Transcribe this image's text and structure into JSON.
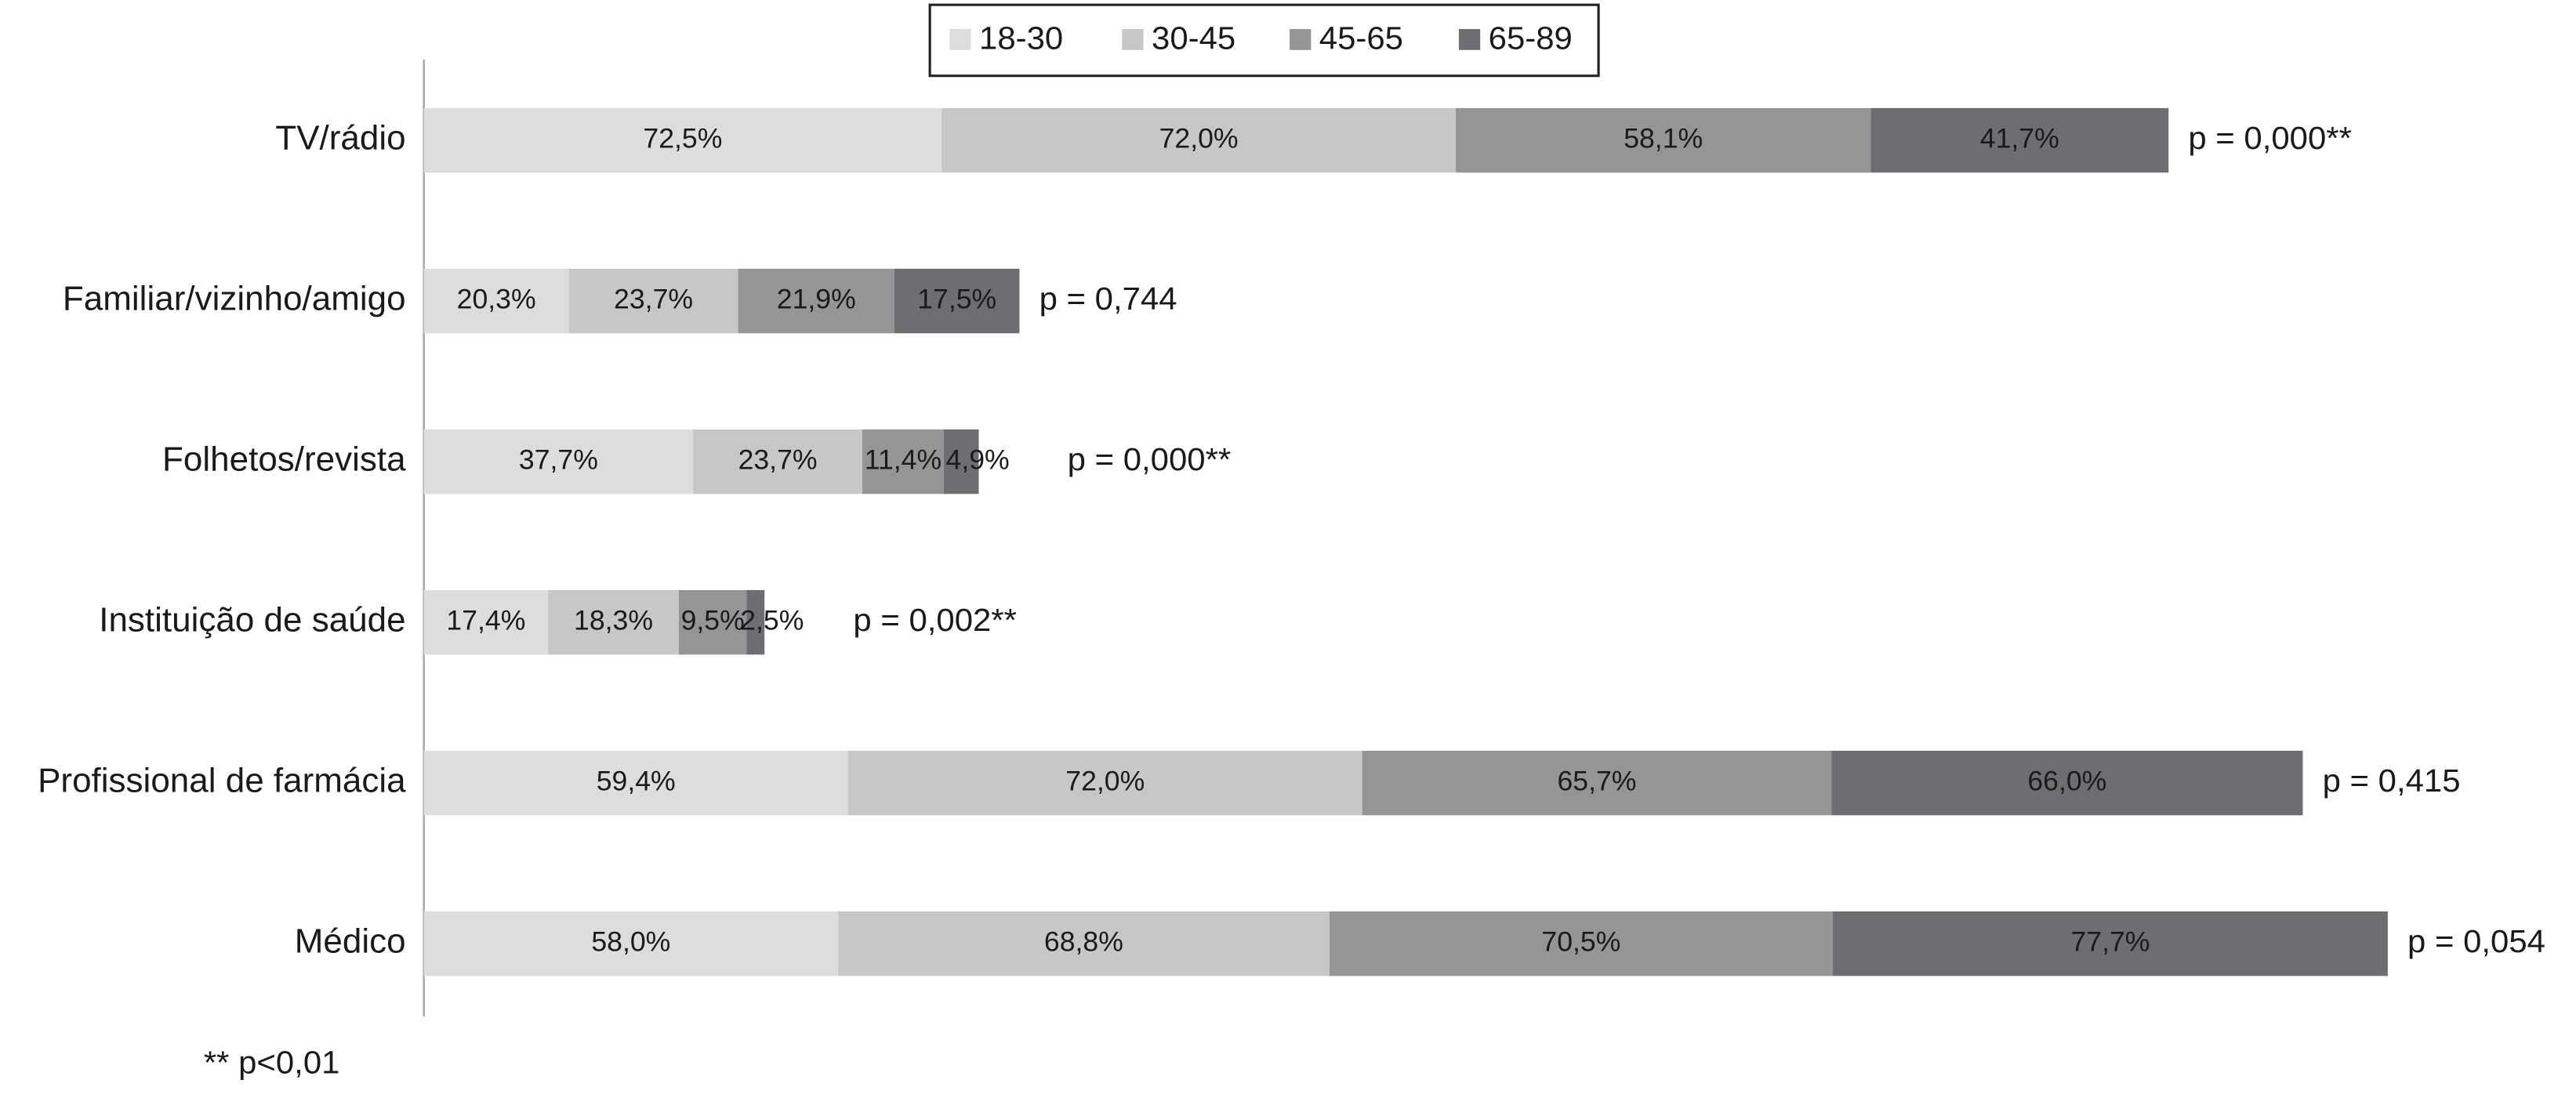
{
  "chart_data": {
    "type": "stacked-barh",
    "categories": [
      "TV/rádio",
      "Familiar/vizinho/amigo",
      "Folhetos/revista",
      "Instituição de saúde",
      "Profissional de farmácia",
      "Médico"
    ],
    "series": [
      {
        "name": "18-30",
        "color": "#dcdddf",
        "values": [
          72.5,
          20.3,
          37.7,
          17.4,
          59.4,
          58.0
        ],
        "value_labels": [
          "72,5%",
          "20,3%",
          "37,7%",
          "17,4%",
          "59,4%",
          "58,0%"
        ]
      },
      {
        "name": "30-45",
        "color": "#c6c7c9",
        "values": [
          72.0,
          23.7,
          23.7,
          18.3,
          72.0,
          68.8
        ],
        "value_labels": [
          "72,0%",
          "23,7%",
          "23,7%",
          "18,3%",
          "72,0%",
          "68,8%"
        ]
      },
      {
        "name": "45-65",
        "color": "#939597",
        "values": [
          58.1,
          21.9,
          11.4,
          9.5,
          65.7,
          70.5
        ],
        "value_labels": [
          "58,1%",
          "21,9%",
          "11,4%",
          "9,5%",
          "65,7%",
          "70,5%"
        ]
      },
      {
        "name": "65-89",
        "color": "#6d6e71",
        "values": [
          41.7,
          17.5,
          4.9,
          2.5,
          66.0,
          77.7
        ],
        "value_labels": [
          "41,7%",
          "17,5%",
          "4,9%",
          "2,5%",
          "66,0%",
          "77,7%"
        ]
      }
    ],
    "annotations": [
      "p = 0,000**",
      "p = 0,744",
      "p = 0,000**",
      "p = 0,002**",
      "p = 0,415",
      "p = 0,054"
    ],
    "footnote": "** p<0,01",
    "legend": "top"
  }
}
